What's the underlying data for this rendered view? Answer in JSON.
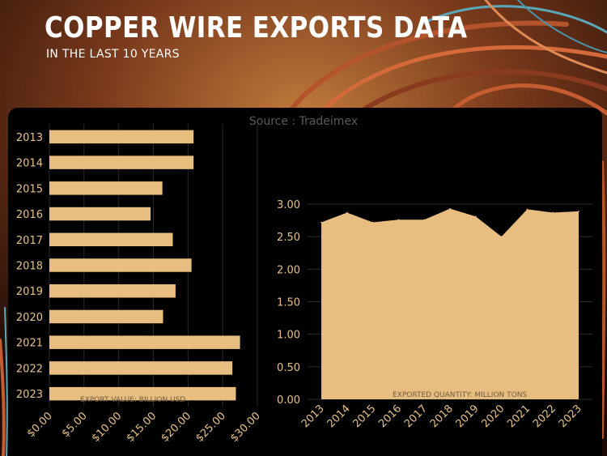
{
  "header": {
    "title": "COPPER WIRE EXPORTS DATA",
    "subtitle": "IN THE LAST 10 YEARS",
    "source": "Source : Tradeimex"
  },
  "colors": {
    "background": "#000000",
    "bar_fill": "#e8be80",
    "area_fill": "#e8be80",
    "tick_text": "#e7c288",
    "title_text": "#ffffff",
    "source_text": "#5a5a5a"
  },
  "chart_data": [
    {
      "type": "bar",
      "orientation": "horizontal",
      "categories": [
        "2013",
        "2014",
        "2015",
        "2016",
        "2017",
        "2018",
        "2019",
        "2020",
        "2021",
        "2022",
        "2023"
      ],
      "values": [
        20.8,
        20.8,
        16.3,
        14.6,
        17.8,
        20.5,
        18.2,
        16.4,
        27.5,
        26.4,
        26.9
      ],
      "xlabel": "EXPORT VALUE: BILLION USD",
      "xlim": [
        0,
        30
      ],
      "xticks": [
        "$0.00",
        "$5.00",
        "$10.00",
        "$15.00",
        "$20.00",
        "$25.00",
        "$30.00"
      ],
      "grid": true
    },
    {
      "type": "area",
      "categories": [
        "2013",
        "2014",
        "2015",
        "2016",
        "2017",
        "2018",
        "2019",
        "2020",
        "2021",
        "2022",
        "2023"
      ],
      "values": [
        2.72,
        2.87,
        2.72,
        2.76,
        2.76,
        2.93,
        2.81,
        2.5,
        2.92,
        2.87,
        2.89
      ],
      "xlabel": "EXPORTED QUANTITY: MILLION TONS",
      "ylim": [
        0,
        3
      ],
      "yticks": [
        "0.00",
        "0.50",
        "1.00",
        "1.50",
        "2.00",
        "2.50",
        "3.00"
      ],
      "grid": true
    }
  ]
}
